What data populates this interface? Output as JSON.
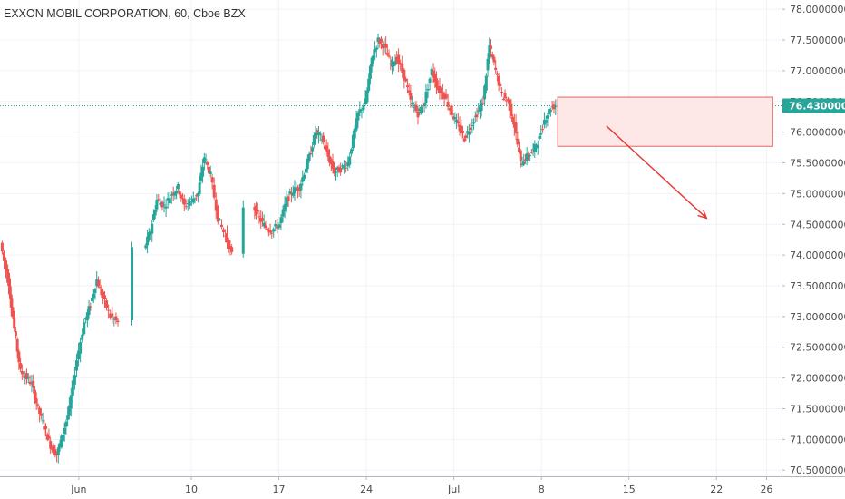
{
  "chart_data": {
    "type": "candlestick",
    "title": "EXXON MOBIL CORPORATION, 60, Cboe BZX",
    "ylim": [
      70.4,
      78.15
    ],
    "y_ticks": [
      "78.00000000",
      "77.50000000",
      "77.00000000",
      "76.50000000",
      "76.00000000",
      "75.50000000",
      "75.00000000",
      "74.50000000",
      "74.00000000",
      "73.50000000",
      "73.00000000",
      "72.50000000",
      "72.00000000",
      "71.50000000",
      "71.00000000",
      "70.50000000"
    ],
    "y_tick_values": [
      78.0,
      77.5,
      77.0,
      76.5,
      76.0,
      75.5,
      75.0,
      74.5,
      74.0,
      73.5,
      73.0,
      72.5,
      72.0,
      71.5,
      71.0,
      70.5
    ],
    "x_ticks": [
      {
        "label": "Jun",
        "day": 1
      },
      {
        "label": "10",
        "day": 10
      },
      {
        "label": "17",
        "day": 17
      },
      {
        "label": "24",
        "day": 24
      },
      {
        "label": "Jul",
        "day": 31
      },
      {
        "label": "8",
        "day": 38
      },
      {
        "label": "15",
        "day": 45
      },
      {
        "label": "22",
        "day": 52
      },
      {
        "label": "26",
        "day": 56
      }
    ],
    "x_range_days": [
      -5.3,
      57.2
    ],
    "last_price": 76.43,
    "last_price_label": "76.43000000",
    "colors": {
      "up": "#26a69a",
      "down": "#ef5350",
      "box_fill": "#fde7e7",
      "box_stroke": "#e06666",
      "arrow": "#e53935",
      "price_line": "#26a69a"
    },
    "anchors": [
      [
        -5.2,
        74.2
      ],
      [
        -4.6,
        73.6
      ],
      [
        -4.1,
        72.8
      ],
      [
        -3.6,
        72.1
      ],
      [
        -3.1,
        72.0
      ],
      [
        -2.7,
        71.9
      ],
      [
        -2.2,
        71.5
      ],
      [
        -1.7,
        71.2
      ],
      [
        -1.2,
        70.9
      ],
      [
        -0.7,
        70.75
      ],
      [
        -0.2,
        71.1
      ],
      [
        0.3,
        71.5
      ],
      [
        0.9,
        72.3
      ],
      [
        1.5,
        72.9
      ],
      [
        2.0,
        73.2
      ],
      [
        2.5,
        73.6
      ],
      [
        3.0,
        73.3
      ],
      [
        3.6,
        73.0
      ],
      [
        4.2,
        72.9
      ],
      [
        6.3,
        74.1
      ],
      [
        6.8,
        74.4
      ],
      [
        7.3,
        74.9
      ],
      [
        7.9,
        74.8
      ],
      [
        8.5,
        75.0
      ],
      [
        9.0,
        75.1
      ],
      [
        9.5,
        74.8
      ],
      [
        10.1,
        74.9
      ],
      [
        10.6,
        75.0
      ],
      [
        11.1,
        75.6
      ],
      [
        11.6,
        75.3
      ],
      [
        12.2,
        74.6
      ],
      [
        12.8,
        74.3
      ],
      [
        13.3,
        74.0
      ],
      [
        15.0,
        74.8
      ],
      [
        15.5,
        74.6
      ],
      [
        16.0,
        74.45
      ],
      [
        16.5,
        74.4
      ],
      [
        17.1,
        74.5
      ],
      [
        17.7,
        74.9
      ],
      [
        18.2,
        75.05
      ],
      [
        18.7,
        75.1
      ],
      [
        19.5,
        75.6
      ],
      [
        20.0,
        76.0
      ],
      [
        20.5,
        75.9
      ],
      [
        21.0,
        75.6
      ],
      [
        21.5,
        75.35
      ],
      [
        22.0,
        75.4
      ],
      [
        22.6,
        75.5
      ],
      [
        23.4,
        76.3
      ],
      [
        24.0,
        76.5
      ],
      [
        24.5,
        77.2
      ],
      [
        25.0,
        77.5
      ],
      [
        25.5,
        77.4
      ],
      [
        26.0,
        77.1
      ],
      [
        26.5,
        77.2
      ],
      [
        27.1,
        76.9
      ],
      [
        27.6,
        76.5
      ],
      [
        28.2,
        76.3
      ],
      [
        28.7,
        76.5
      ],
      [
        29.3,
        77.0
      ],
      [
        29.8,
        76.7
      ],
      [
        30.3,
        76.6
      ],
      [
        30.9,
        76.3
      ],
      [
        31.4,
        76.1
      ],
      [
        31.9,
        75.9
      ],
      [
        32.4,
        76.1
      ],
      [
        32.9,
        76.3
      ],
      [
        33.4,
        76.5
      ],
      [
        33.9,
        77.4
      ],
      [
        34.4,
        77.0
      ],
      [
        34.9,
        76.6
      ],
      [
        35.4,
        76.5
      ],
      [
        35.9,
        76.1
      ],
      [
        36.4,
        75.5
      ],
      [
        36.9,
        75.6
      ],
      [
        37.4,
        75.7
      ],
      [
        37.9,
        75.9
      ],
      [
        38.3,
        76.2
      ],
      [
        38.8,
        76.4
      ],
      [
        39.2,
        76.43
      ]
    ]
  }
}
